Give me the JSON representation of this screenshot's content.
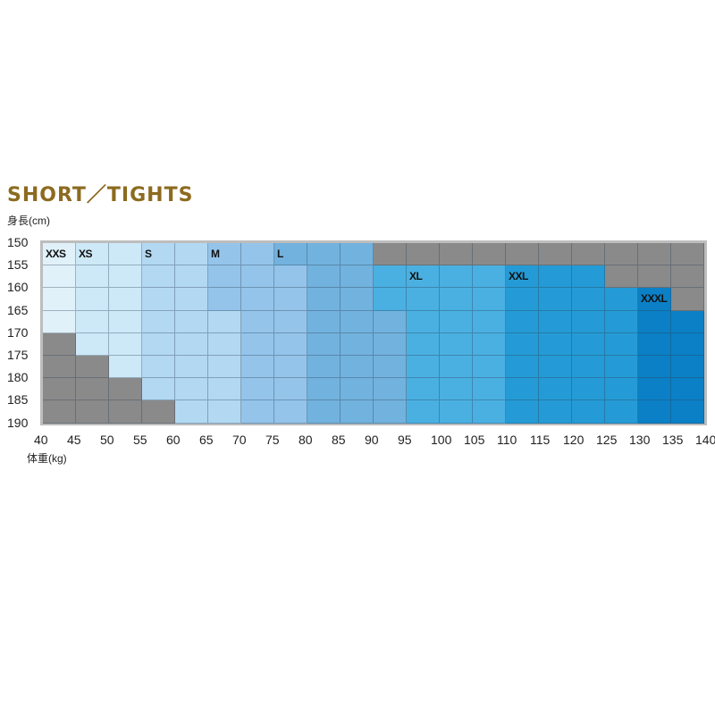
{
  "chart_data": {
    "type": "heatmap",
    "title": "SHORT／TIGHTS",
    "ylabel": "身長(cm)",
    "xlabel": "体重(kg)",
    "x_ticks": [
      40,
      45,
      50,
      55,
      60,
      65,
      70,
      75,
      80,
      85,
      90,
      95,
      100,
      105,
      110,
      115,
      120,
      125,
      130,
      135,
      140
    ],
    "y_ticks": [
      150,
      155,
      160,
      165,
      170,
      175,
      180,
      185,
      190
    ],
    "xlim": [
      40,
      140
    ],
    "ylim": [
      150,
      190
    ],
    "cell_step": 5,
    "size_colors": {
      "XXS": "#e0f1fa",
      "XS": "#cde9f8",
      "S": "#b3d8f2",
      "M": "#94c4ea",
      "L": "#72b2de",
      "XL": "#4ab0e2",
      "XXL": "#249bd6",
      "XXXL": "#0b80c6",
      "-": "#8a8a8a"
    },
    "sizes": [
      [
        "XXS",
        "XS",
        "XS",
        "S",
        "S",
        "M",
        "M",
        "L",
        "L",
        "L",
        "-",
        "-",
        "-",
        "-",
        "-",
        "-",
        "-",
        "-",
        "-",
        "-"
      ],
      [
        "XXS",
        "XS",
        "XS",
        "S",
        "S",
        "M",
        "M",
        "M",
        "L",
        "L",
        "XL",
        "XL",
        "XL",
        "XL",
        "XXL",
        "XXL",
        "XXL",
        "-",
        "-",
        "-"
      ],
      [
        "XXS",
        "XS",
        "XS",
        "S",
        "S",
        "M",
        "M",
        "M",
        "L",
        "L",
        "XL",
        "XL",
        "XL",
        "XL",
        "XXL",
        "XXL",
        "XXL",
        "XXL",
        "XXXL",
        "-"
      ],
      [
        "XXS",
        "XS",
        "XS",
        "S",
        "S",
        "S",
        "M",
        "M",
        "L",
        "L",
        "L",
        "XL",
        "XL",
        "XL",
        "XXL",
        "XXL",
        "XXL",
        "XXL",
        "XXXL",
        "XXXL"
      ],
      [
        "-",
        "XS",
        "XS",
        "S",
        "S",
        "S",
        "M",
        "M",
        "L",
        "L",
        "L",
        "XL",
        "XL",
        "XL",
        "XXL",
        "XXL",
        "XXL",
        "XXL",
        "XXXL",
        "XXXL"
      ],
      [
        "-",
        "-",
        "XS",
        "S",
        "S",
        "S",
        "M",
        "M",
        "L",
        "L",
        "L",
        "XL",
        "XL",
        "XL",
        "XXL",
        "XXL",
        "XXL",
        "XXL",
        "XXXL",
        "XXXL"
      ],
      [
        "-",
        "-",
        "-",
        "S",
        "S",
        "S",
        "M",
        "M",
        "L",
        "L",
        "L",
        "XL",
        "XL",
        "XL",
        "XXL",
        "XXL",
        "XXL",
        "XXL",
        "XXXL",
        "XXXL"
      ],
      [
        "-",
        "-",
        "-",
        "-",
        "S",
        "S",
        "M",
        "M",
        "L",
        "L",
        "L",
        "XL",
        "XL",
        "XL",
        "XXL",
        "XXL",
        "XXL",
        "XXL",
        "XXXL",
        "XXXL"
      ]
    ],
    "size_labels": [
      {
        "text": "XXS",
        "weight": 40,
        "height": 150
      },
      {
        "text": "XS",
        "weight": 45,
        "height": 150
      },
      {
        "text": "S",
        "weight": 55,
        "height": 150
      },
      {
        "text": "M",
        "weight": 65,
        "height": 150
      },
      {
        "text": "L",
        "weight": 75,
        "height": 150
      },
      {
        "text": "XL",
        "weight": 95,
        "height": 155
      },
      {
        "text": "XXL",
        "weight": 110,
        "height": 155
      },
      {
        "text": "XXXL",
        "weight": 130,
        "height": 160
      }
    ]
  }
}
